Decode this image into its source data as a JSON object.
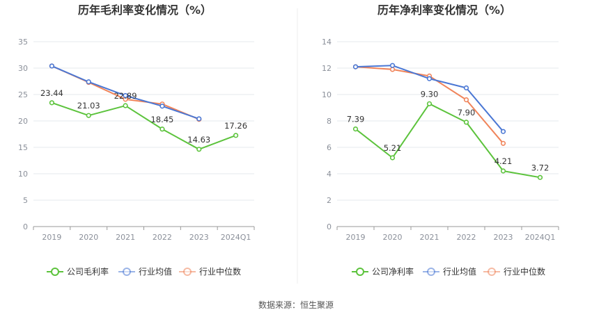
{
  "colors": {
    "company": "#5cc33c",
    "industry_avg": "#4a77d4",
    "industry_median": "#f0845a",
    "grid": "#e6e8ee",
    "axis": "#999999"
  },
  "legend": {
    "company_gross": "公司毛利率",
    "company_net": "公司净利率",
    "industry_avg": "行业均值",
    "industry_median": "行业中位数"
  },
  "source_text": "数据来源：恒生聚源",
  "chart_data": [
    {
      "type": "line",
      "title": "历年毛利率变化情况（%）",
      "categories": [
        "2019",
        "2020",
        "2021",
        "2022",
        "2023",
        "2024Q1"
      ],
      "ylim": [
        0,
        35
      ],
      "yticks": [
        0,
        5,
        10,
        15,
        20,
        25,
        30,
        35
      ],
      "grid": true,
      "legend_position": "bottom",
      "series": [
        {
          "name": "公司毛利率",
          "values": [
            23.44,
            21.03,
            22.89,
            18.45,
            14.63,
            17.26
          ],
          "labels": [
            "23.44",
            "21.03",
            "22.89",
            "18.45",
            "14.63",
            "17.26"
          ]
        },
        {
          "name": "行业均值",
          "values": [
            30.4,
            27.4,
            24.8,
            22.8,
            20.4,
            null
          ]
        },
        {
          "name": "行业中位数",
          "values": [
            30.4,
            27.3,
            24.1,
            23.2,
            20.3,
            null
          ]
        }
      ]
    },
    {
      "type": "line",
      "title": "历年净利率变化情况（%）",
      "categories": [
        "2019",
        "2020",
        "2021",
        "2022",
        "2023",
        "2024Q1"
      ],
      "ylim": [
        0,
        14
      ],
      "yticks": [
        0,
        2,
        4,
        6,
        8,
        10,
        12,
        14
      ],
      "grid": true,
      "legend_position": "bottom",
      "series": [
        {
          "name": "公司净利率",
          "values": [
            7.39,
            5.21,
            9.3,
            7.9,
            4.21,
            3.72
          ],
          "labels": [
            "7.39",
            "5.21",
            "9.30",
            "7.90",
            "4.21",
            "3.72"
          ]
        },
        {
          "name": "行业均值",
          "values": [
            12.1,
            12.2,
            11.2,
            10.5,
            7.2,
            null
          ]
        },
        {
          "name": "行业中位数",
          "values": [
            12.1,
            11.9,
            11.4,
            9.6,
            6.3,
            null
          ]
        }
      ]
    }
  ]
}
